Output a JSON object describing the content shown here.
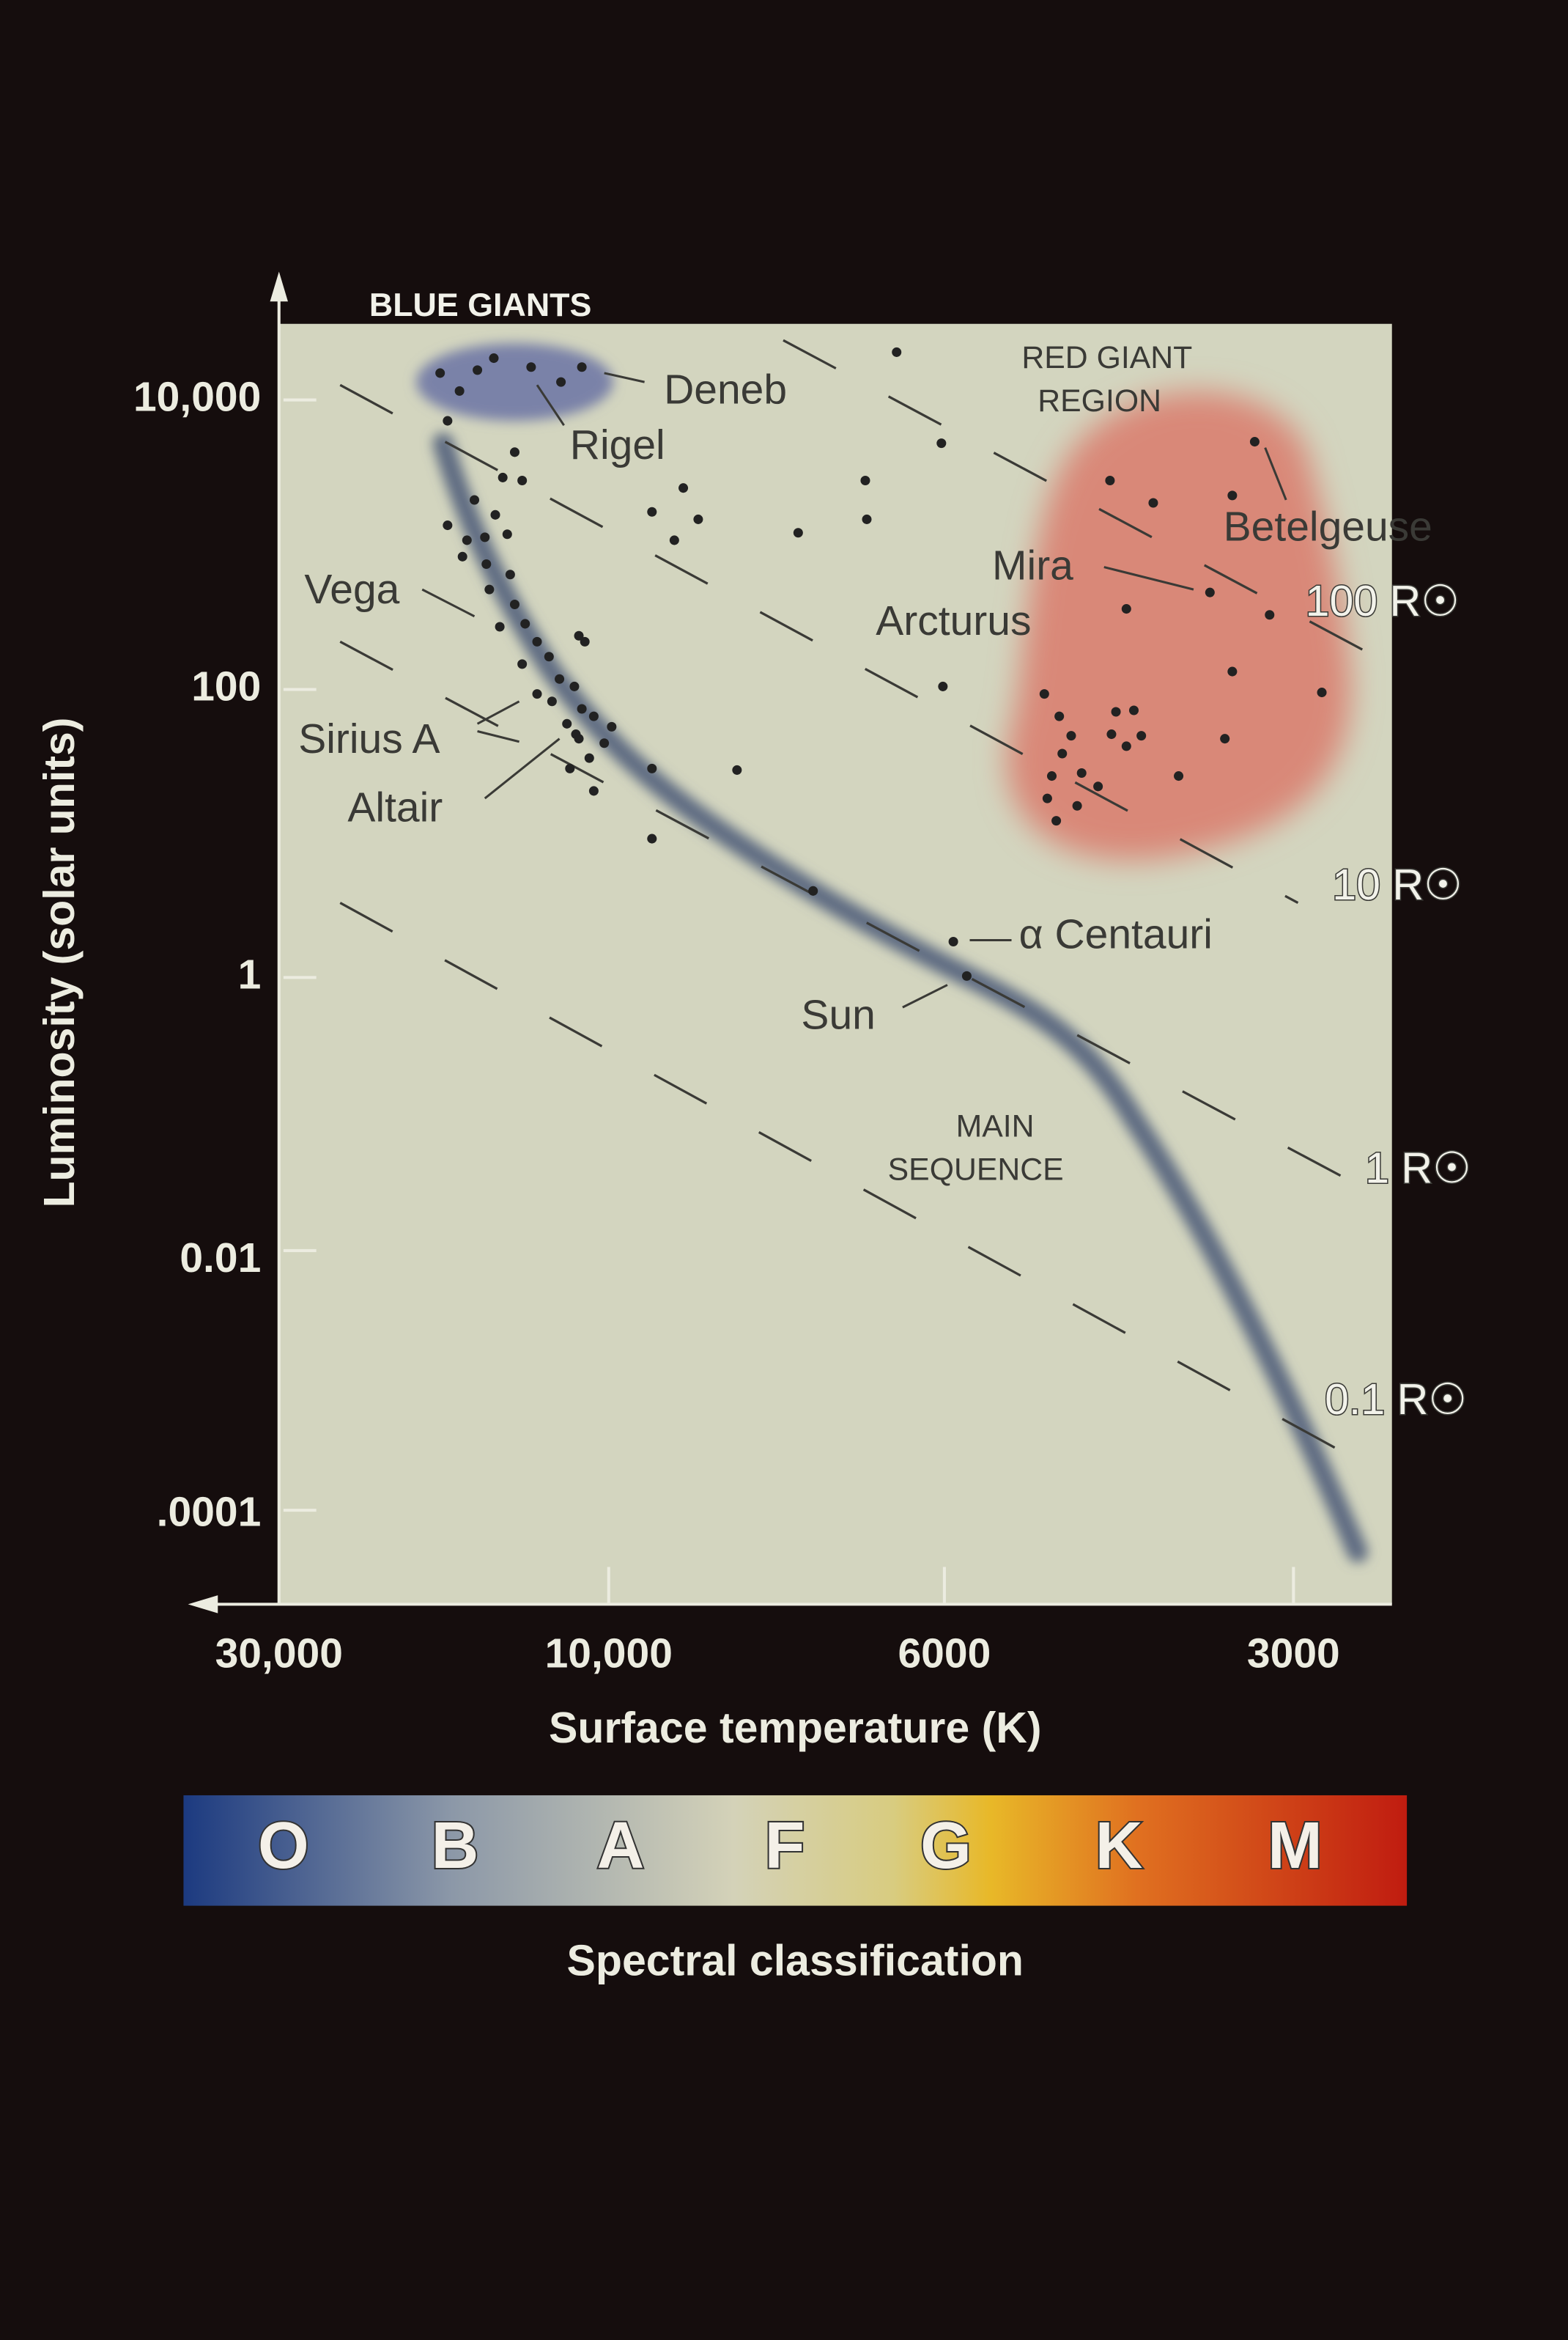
{
  "y_axis": {
    "label": "Luminosity (solar units)",
    "ticks": [
      "10,000",
      "100",
      "1",
      "0.01",
      ".0001"
    ]
  },
  "x_axis": {
    "label": "Surface temperature (K)",
    "ticks": [
      "30,000",
      "10,000",
      "6000",
      "3000"
    ]
  },
  "regions": {
    "blue_giants": "BLUE GIANTS",
    "red_giant": [
      "RED GIANT",
      "REGION"
    ],
    "main_sequence": [
      "MAIN",
      "SEQUENCE"
    ]
  },
  "stars": [
    "Deneb",
    "Rigel",
    "Vega",
    "Sirius A",
    "Altair",
    "Arcturus",
    "Mira",
    "Betelgeuse",
    "α Centauri",
    "Sun"
  ],
  "radii": [
    "100 R☉",
    "10 R☉",
    "1 R☉",
    "0.1 R☉"
  ],
  "spectral": {
    "label": "Spectral classification",
    "classes": [
      "O",
      "B",
      "A",
      "F",
      "G",
      "K",
      "M"
    ]
  }
}
